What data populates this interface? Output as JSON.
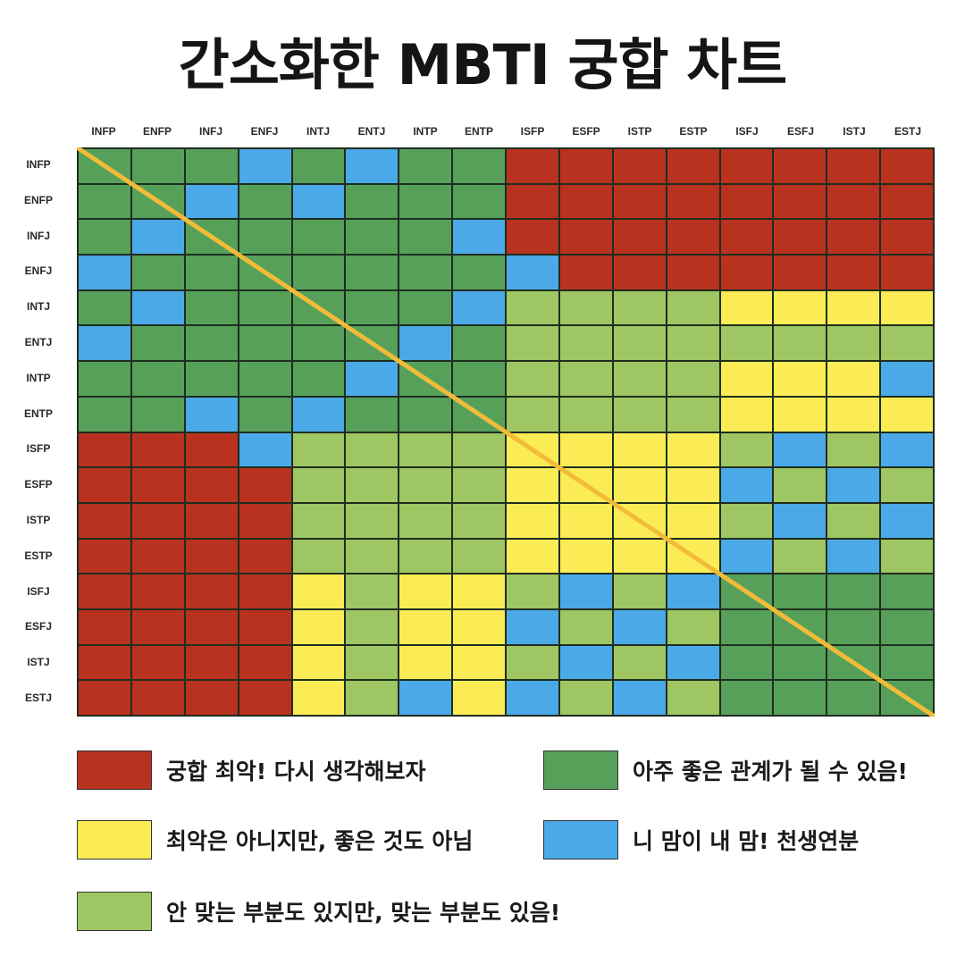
{
  "title": "간소화한 MBTI 궁합 차트",
  "colors": {
    "R": "#b8321f",
    "Y": "#fbec55",
    "L": "#9ec662",
    "G": "#56a05a",
    "B": "#4aa9e6",
    "diagonal": "#f2bb3a"
  },
  "legend": [
    {
      "key": "R",
      "label": "궁합 최악! 다시 생각해보자"
    },
    {
      "key": "G",
      "label": "아주 좋은 관계가 될 수 있음!"
    },
    {
      "key": "Y",
      "label": "최악은 아니지만, 좋은 것도 아님"
    },
    {
      "key": "B",
      "label": "니 맘이 내 맘! 천생연분"
    },
    {
      "key": "L",
      "label": "안 맞는 부분도 있지만, 맞는 부분도 있음!"
    }
  ],
  "chart_data": {
    "type": "heatmap",
    "title": "간소화한 MBTI 궁합 차트",
    "x": [
      "INFP",
      "ENFP",
      "INFJ",
      "ENFJ",
      "INTJ",
      "ENTJ",
      "INTP",
      "ENTP",
      "ISFP",
      "ESFP",
      "ISTP",
      "ESTP",
      "ISFJ",
      "ESFJ",
      "ISTJ",
      "ESTJ"
    ],
    "y": [
      "INFP",
      "ENFP",
      "INFJ",
      "ENFJ",
      "INTJ",
      "ENTJ",
      "INTP",
      "ENTP",
      "ISFP",
      "ESFP",
      "ISTP",
      "ESTP",
      "ISFJ",
      "ESFJ",
      "ISTJ",
      "ESTJ"
    ],
    "scale": {
      "R": "궁합 최악! 다시 생각해보자",
      "Y": "최악은 아니지만, 좋은 것도 아님",
      "L": "안 맞는 부분도 있지만, 맞는 부분도 있음!",
      "G": "아주 좋은 관계가 될 수 있음!",
      "B": "니 맘이 내 맘! 천생연분"
    },
    "values": [
      [
        "G",
        "G",
        "G",
        "B",
        "G",
        "B",
        "G",
        "G",
        "R",
        "R",
        "R",
        "R",
        "R",
        "R",
        "R",
        "R"
      ],
      [
        "G",
        "G",
        "B",
        "G",
        "B",
        "G",
        "G",
        "G",
        "R",
        "R",
        "R",
        "R",
        "R",
        "R",
        "R",
        "R"
      ],
      [
        "G",
        "B",
        "G",
        "G",
        "G",
        "G",
        "G",
        "B",
        "R",
        "R",
        "R",
        "R",
        "R",
        "R",
        "R",
        "R"
      ],
      [
        "B",
        "G",
        "G",
        "G",
        "G",
        "G",
        "G",
        "G",
        "B",
        "R",
        "R",
        "R",
        "R",
        "R",
        "R",
        "R"
      ],
      [
        "G",
        "B",
        "G",
        "G",
        "G",
        "G",
        "G",
        "B",
        "L",
        "L",
        "L",
        "L",
        "Y",
        "Y",
        "Y",
        "Y"
      ],
      [
        "B",
        "G",
        "G",
        "G",
        "G",
        "G",
        "B",
        "G",
        "L",
        "L",
        "L",
        "L",
        "L",
        "L",
        "L",
        "L"
      ],
      [
        "G",
        "G",
        "G",
        "G",
        "G",
        "B",
        "G",
        "G",
        "L",
        "L",
        "L",
        "L",
        "Y",
        "Y",
        "Y",
        "B"
      ],
      [
        "G",
        "G",
        "B",
        "G",
        "B",
        "G",
        "G",
        "G",
        "L",
        "L",
        "L",
        "L",
        "Y",
        "Y",
        "Y",
        "Y"
      ],
      [
        "R",
        "R",
        "R",
        "B",
        "L",
        "L",
        "L",
        "L",
        "Y",
        "Y",
        "Y",
        "Y",
        "L",
        "B",
        "L",
        "B"
      ],
      [
        "R",
        "R",
        "R",
        "R",
        "L",
        "L",
        "L",
        "L",
        "Y",
        "Y",
        "Y",
        "Y",
        "B",
        "L",
        "B",
        "L"
      ],
      [
        "R",
        "R",
        "R",
        "R",
        "L",
        "L",
        "L",
        "L",
        "Y",
        "Y",
        "Y",
        "Y",
        "L",
        "B",
        "L",
        "B"
      ],
      [
        "R",
        "R",
        "R",
        "R",
        "L",
        "L",
        "L",
        "L",
        "Y",
        "Y",
        "Y",
        "Y",
        "B",
        "L",
        "B",
        "L"
      ],
      [
        "R",
        "R",
        "R",
        "R",
        "Y",
        "L",
        "Y",
        "Y",
        "L",
        "B",
        "L",
        "B",
        "G",
        "G",
        "G",
        "G"
      ],
      [
        "R",
        "R",
        "R",
        "R",
        "Y",
        "L",
        "Y",
        "Y",
        "B",
        "L",
        "B",
        "L",
        "G",
        "G",
        "G",
        "G"
      ],
      [
        "R",
        "R",
        "R",
        "R",
        "Y",
        "L",
        "Y",
        "Y",
        "L",
        "B",
        "L",
        "B",
        "G",
        "G",
        "G",
        "G"
      ],
      [
        "R",
        "R",
        "R",
        "R",
        "Y",
        "L",
        "B",
        "Y",
        "B",
        "L",
        "B",
        "L",
        "G",
        "G",
        "G",
        "G"
      ]
    ],
    "annotations": [
      "diagonal line from top-left to bottom-right"
    ],
    "legend_position": "bottom"
  }
}
